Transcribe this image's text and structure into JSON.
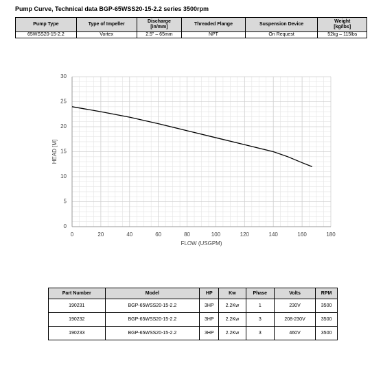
{
  "header": {
    "title": "Pump Curve, Technical data BGP-65WSS20-15-2.2 series 3500rpm"
  },
  "table1": {
    "columns": [
      "Pump Type",
      "Type of Impeller",
      "Discharge\n[in/mm]",
      "Threaded Flange",
      "Suspension Device",
      "Weight\n[kg/lbs]"
    ],
    "rows": [
      [
        "65WSS20-15-2.2",
        "Vortex",
        "2.5\" – 65mm",
        "NPT",
        "On Request",
        "52kg – 115lbs"
      ]
    ]
  },
  "chart_data": {
    "type": "line",
    "x_label": "FLOW (USGPM)",
    "y_label": "HEAD [M]",
    "x": [
      0,
      20,
      40,
      60,
      80,
      100,
      120,
      140,
      150,
      160,
      167
    ],
    "series": [
      {
        "name": "BGP-65WSS20-15-2.2",
        "color": "#000000",
        "values": [
          24,
          23,
          21.9,
          20.6,
          19.2,
          17.8,
          16.4,
          15,
          14,
          12.8,
          12
        ]
      }
    ],
    "xlim": [
      0,
      180
    ],
    "ylim": [
      0,
      30
    ],
    "xticks": [
      0,
      20,
      40,
      60,
      80,
      100,
      120,
      140,
      160,
      180
    ],
    "yticks": [
      0,
      5,
      10,
      15,
      20,
      25,
      30
    ],
    "grid": true
  },
  "table2": {
    "columns": [
      "Part Number",
      "Model",
      "HP",
      "Kw",
      "Phase",
      "Volts",
      "RPM"
    ],
    "rows": [
      [
        "190231",
        "BGP-65WSS20-15-2.2",
        "3HP",
        "2.2Kw",
        "1",
        "230V",
        "3500"
      ],
      [
        "190232",
        "BGP-65WSS20-15-2.2",
        "3HP",
        "2.2Kw",
        "3",
        "208-230V",
        "3500"
      ],
      [
        "190233",
        "BGP-65WSS20-15-2.2",
        "3HP",
        "2.2Kw",
        "3",
        "460V",
        "3500"
      ]
    ]
  }
}
